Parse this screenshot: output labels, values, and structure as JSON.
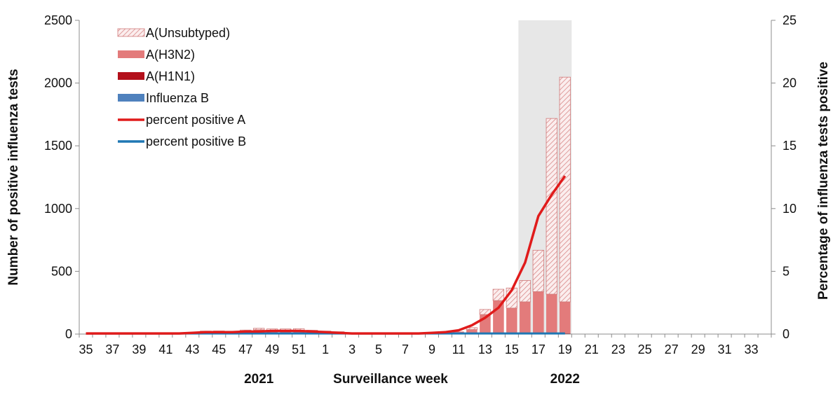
{
  "chart_data": {
    "type": "bar",
    "y_axis_left": {
      "label": "Number of positive influenza tests",
      "range": [
        0,
        2500
      ],
      "ticks": [
        "0",
        "500",
        "1000",
        "1500",
        "2000",
        "2500"
      ]
    },
    "y_axis_right": {
      "label": "Percentage of influenza tests positive",
      "range": [
        0,
        25
      ],
      "ticks": [
        "0",
        "5",
        "10",
        "15",
        "20",
        "25"
      ]
    },
    "x_axis": {
      "label": "Surveillance  week",
      "year_labels": [
        {
          "text": "2021",
          "at_week": "48"
        },
        {
          "text": "2022",
          "at_week": "19"
        }
      ],
      "tick_labels": [
        "35",
        "37",
        "39",
        "41",
        "43",
        "45",
        "47",
        "49",
        "51",
        "1",
        "3",
        "5",
        "7",
        "9",
        "11",
        "13",
        "15",
        "17",
        "19",
        "21",
        "23",
        "25",
        "27",
        "29",
        "31",
        "33"
      ]
    },
    "weeks": [
      "35",
      "36",
      "37",
      "38",
      "39",
      "40",
      "41",
      "42",
      "43",
      "44",
      "45",
      "46",
      "47",
      "48",
      "49",
      "50",
      "51",
      "52",
      "1",
      "2",
      "3",
      "4",
      "5",
      "6",
      "7",
      "8",
      "9",
      "10",
      "11",
      "12",
      "13",
      "14",
      "15",
      "16",
      "17",
      "18",
      "19",
      "20",
      "21",
      "22",
      "23",
      "24",
      "25",
      "26",
      "27",
      "28",
      "29",
      "30",
      "31",
      "32",
      "33",
      "34"
    ],
    "highlight": {
      "from_week": "16",
      "to_week": "19"
    },
    "legend": {
      "placement": "top-left",
      "entries": [
        "A(Unsubtyped)",
        "A(H3N2)",
        "A(H1N1)",
        "Influenza B",
        "percent positive A",
        "percent positive B"
      ]
    },
    "colors": {
      "unsubtyped": "#e8a0a0",
      "h3n2": "#e37b7b",
      "h1n1": "#b3101b",
      "influenza_b": "#4f81bd",
      "pct_a": "#e01b1b",
      "pct_b": "#1f77b4",
      "highlight": "#e7e7e7"
    },
    "series": [
      {
        "name": "A(Unsubtyped)",
        "kind": "bar-stack",
        "values": [
          0,
          0,
          0,
          0,
          0,
          0,
          0,
          0,
          0,
          3,
          5,
          5,
          8,
          12,
          10,
          12,
          12,
          8,
          6,
          4,
          0,
          0,
          0,
          0,
          0,
          0,
          3,
          0,
          0,
          15,
          40,
          90,
          160,
          170,
          330,
          1400,
          1790,
          0,
          0,
          0,
          0,
          0,
          0,
          0,
          0,
          0,
          0,
          0,
          0,
          0,
          0,
          0
        ]
      },
      {
        "name": "A(H3N2)",
        "kind": "bar-stack",
        "values": [
          2,
          2,
          2,
          2,
          2,
          2,
          2,
          5,
          10,
          12,
          15,
          15,
          20,
          30,
          27,
          25,
          27,
          20,
          15,
          12,
          6,
          4,
          3,
          3,
          3,
          4,
          6,
          8,
          15,
          30,
          150,
          260,
          200,
          250,
          330,
          310,
          250,
          0,
          0,
          0,
          0,
          0,
          0,
          0,
          0,
          0,
          0,
          0,
          0,
          0,
          0,
          0
        ]
      },
      {
        "name": "A(H1N1)",
        "kind": "bar-stack",
        "values": [
          0,
          0,
          0,
          0,
          0,
          0,
          0,
          0,
          0,
          1,
          1,
          0,
          1,
          1,
          1,
          1,
          1,
          0,
          0,
          0,
          0,
          0,
          0,
          0,
          0,
          0,
          0,
          0,
          0,
          1,
          1,
          2,
          2,
          2,
          3,
          3,
          2,
          0,
          0,
          0,
          0,
          0,
          0,
          0,
          0,
          0,
          0,
          0,
          0,
          0,
          0,
          0
        ]
      },
      {
        "name": "Influenza B",
        "kind": "bar-stack",
        "values": [
          1,
          1,
          1,
          1,
          1,
          1,
          1,
          2,
          3,
          8,
          4,
          3,
          3,
          3,
          3,
          3,
          3,
          3,
          3,
          3,
          2,
          2,
          2,
          2,
          2,
          2,
          3,
          3,
          5,
          5,
          5,
          5,
          5,
          5,
          5,
          5,
          5,
          0,
          0,
          0,
          0,
          0,
          0,
          0,
          0,
          0,
          0,
          0,
          0,
          0,
          0,
          0
        ]
      },
      {
        "name": "percent positive A",
        "kind": "line",
        "values": [
          0.05,
          0.05,
          0.05,
          0.05,
          0.05,
          0.05,
          0.05,
          0.05,
          0.1,
          0.15,
          0.15,
          0.15,
          0.2,
          0.2,
          0.25,
          0.25,
          0.25,
          0.2,
          0.15,
          0.1,
          0.05,
          0.05,
          0.05,
          0.05,
          0.05,
          0.05,
          0.1,
          0.15,
          0.3,
          0.7,
          1.3,
          2.1,
          3.5,
          5.7,
          9.4,
          11.1,
          12.6
        ]
      },
      {
        "name": "percent positive B",
        "kind": "line",
        "values": [
          0.05,
          0.05,
          0.05,
          0.05,
          0.05,
          0.05,
          0.05,
          0.05,
          0.05,
          0.05,
          0.05,
          0.05,
          0.05,
          0.05,
          0.05,
          0.05,
          0.05,
          0.05,
          0.05,
          0.05,
          0.05,
          0.05,
          0.05,
          0.05,
          0.05,
          0.05,
          0.05,
          0.05,
          0.05,
          0.05,
          0.05,
          0.05,
          0.05,
          0.05,
          0.05,
          0.05,
          0.05
        ]
      }
    ]
  }
}
